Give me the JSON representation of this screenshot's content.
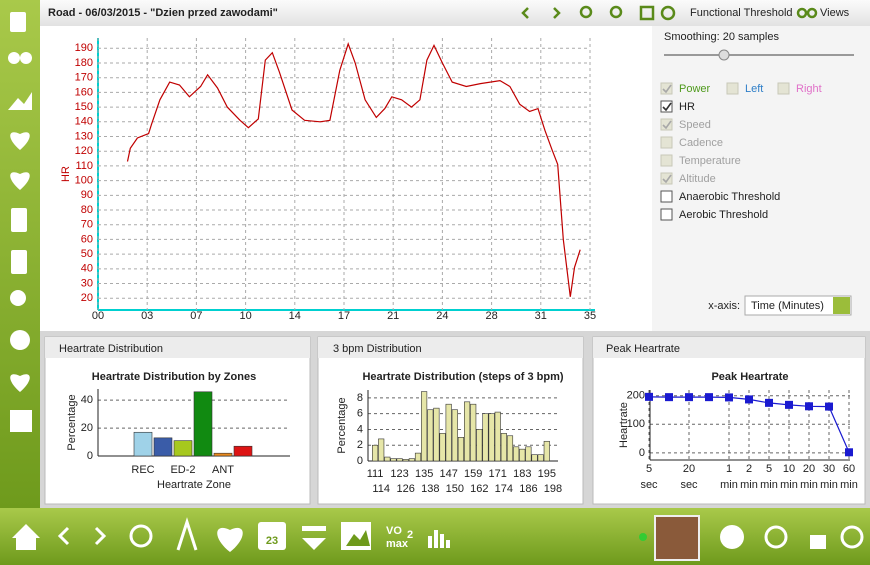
{
  "header": {
    "title": "Road - 06/03/2015 - \"Dzien przed zawodami\"",
    "threshold": "Functional Threshold",
    "views": "Views"
  },
  "side_panel": {
    "smoothing": "Smoothing: 20 samples",
    "options": [
      {
        "label": "Power",
        "checked": true,
        "enabled": false,
        "color": "#4f9a1c"
      },
      {
        "label": "Left",
        "checked": false,
        "enabled": false,
        "color": "#2f7fc8"
      },
      {
        "label": "Right",
        "checked": false,
        "enabled": false,
        "color": "#e070c8"
      },
      {
        "label": "HR",
        "checked": true,
        "enabled": true,
        "color": "#222222"
      },
      {
        "label": "Speed",
        "checked": true,
        "enabled": false,
        "color": "#a0a0a0"
      },
      {
        "label": "Cadence",
        "checked": false,
        "enabled": false,
        "color": "#a0a0a0"
      },
      {
        "label": "Temperature",
        "checked": false,
        "enabled": false,
        "color": "#a0a0a0"
      },
      {
        "label": "Altitude",
        "checked": true,
        "enabled": false,
        "color": "#a0a0a0"
      },
      {
        "label": "Anaerobic Threshold",
        "checked": false,
        "enabled": true,
        "color": "#222222"
      },
      {
        "label": "Aerobic Threshold",
        "checked": false,
        "enabled": true,
        "color": "#222222"
      }
    ],
    "xaxis_label": "x-axis:",
    "xaxis_value": "Time (Minutes)"
  },
  "panels": [
    "Heartrate Distribution",
    "3 bpm Distribution",
    "Peak Heartrate"
  ],
  "toolbar": {
    "calendar_day": "23",
    "vo": "VO",
    "vo_sub": "2",
    "vo_max": "max"
  },
  "chart_data": [
    {
      "type": "line",
      "ylabel": "HR",
      "xlim": [
        0,
        35
      ],
      "ylim": [
        12,
        197
      ],
      "xticks": [
        {
          "value": 0,
          "label": "00"
        },
        {
          "value": 3.5,
          "label": "03"
        },
        {
          "value": 7,
          "label": "07"
        },
        {
          "value": 10.5,
          "label": "10"
        },
        {
          "value": 14,
          "label": "14"
        },
        {
          "value": 17.5,
          "label": "17"
        },
        {
          "value": 21,
          "label": "21"
        },
        {
          "value": 24.5,
          "label": "24"
        },
        {
          "value": 28,
          "label": "28"
        },
        {
          "value": 31.5,
          "label": "31"
        },
        {
          "value": 35,
          "label": "35"
        }
      ],
      "yticks": [
        20,
        30,
        40,
        50,
        60,
        70,
        80,
        90,
        100,
        110,
        120,
        130,
        140,
        150,
        160,
        170,
        180,
        190
      ],
      "grid": true,
      "series": [
        {
          "name": "HR",
          "color": "#c00000",
          "x": [
            2.1,
            2.3,
            2.8,
            3.6,
            3.8,
            4.4,
            5.1,
            5.8,
            6.5,
            7.3,
            7.8,
            8.5,
            9.2,
            10.1,
            10.7,
            11.4,
            11.9,
            12.4,
            12.9,
            13.8,
            14.7,
            15.8,
            16.5,
            17.2,
            17.8,
            18.3,
            19.0,
            19.8,
            20.4,
            20.9,
            21.6,
            22.3,
            22.9,
            23.4,
            23.9,
            24.5,
            25.2,
            26.2,
            27.2,
            28.6,
            29.3,
            30.0,
            30.7,
            31.3,
            31.8,
            32.3,
            32.7,
            33.1,
            33.6,
            33.9,
            34.3
          ],
          "values": [
            113,
            122,
            129,
            132,
            138,
            155,
            167,
            165,
            157,
            164,
            172,
            163,
            150,
            141,
            136,
            142,
            182,
            187,
            174,
            148,
            141,
            140,
            141,
            175,
            193,
            180,
            155,
            143,
            149,
            157,
            155,
            150,
            155,
            182,
            192,
            180,
            167,
            164,
            166,
            168,
            164,
            152,
            147,
            149,
            134,
            121,
            111,
            60,
            21,
            41,
            53
          ]
        }
      ]
    },
    {
      "type": "bar",
      "title": "Heartrate Distribution by Zones",
      "ylabel": "Percentage",
      "xlabel": "Heartrate Zone",
      "categories": [
        "REC",
        null,
        "ED-2",
        null,
        "ANT",
        null
      ],
      "values": [
        17,
        13,
        11,
        46,
        2,
        7
      ],
      "colors": [
        "#9fd2e8",
        "#3a5ca8",
        "#a6c81e",
        "#118a11",
        "#e8891e",
        "#dd1414"
      ],
      "ylim": [
        0,
        48
      ],
      "yticks": [
        0,
        20,
        40
      ],
      "grid": true
    },
    {
      "type": "bar",
      "title": "Heartrate Distribution (steps of 3 bpm)",
      "ylabel": "Percentage",
      "color": "#e6e6a8",
      "categories": [
        "111",
        "114",
        null,
        null,
        "123",
        "126",
        null,
        null,
        "135",
        "138",
        null,
        null,
        "147",
        "150",
        null,
        null,
        "159",
        "162",
        null,
        null,
        "171",
        "174",
        null,
        null,
        "183",
        "186",
        null,
        null,
        "195",
        "198"
      ],
      "values": [
        2,
        2.8,
        0.5,
        0.3,
        0.3,
        0.2,
        0.3,
        1,
        8.8,
        6.5,
        6.7,
        3.5,
        7.2,
        6.5,
        3,
        7.5,
        7.2,
        4,
        6,
        6,
        6.2,
        3.5,
        3.2,
        1.8,
        1.5,
        1.8,
        0.8,
        0.8,
        2.5,
        0
      ],
      "ylim": [
        0,
        9
      ],
      "yticks": [
        0,
        2,
        4,
        6,
        8
      ],
      "grid": true
    },
    {
      "type": "line",
      "title": "Peak Heartrate",
      "ylabel": "Heartrate",
      "color": "#1a1ad0",
      "categories": [
        "5",
        null,
        "20",
        null,
        "1",
        "2",
        "5",
        "10",
        "20",
        "30",
        "60"
      ],
      "category_units": [
        "sec",
        null,
        "sec",
        null,
        "min",
        "min",
        "min",
        "min",
        "min",
        "min",
        "min"
      ],
      "values": [
        196,
        195,
        195,
        195,
        194,
        187,
        175,
        168,
        163,
        162,
        2
      ],
      "ylim": [
        -25,
        220
      ],
      "yticks": [
        0,
        100,
        200
      ],
      "grid": true
    }
  ]
}
